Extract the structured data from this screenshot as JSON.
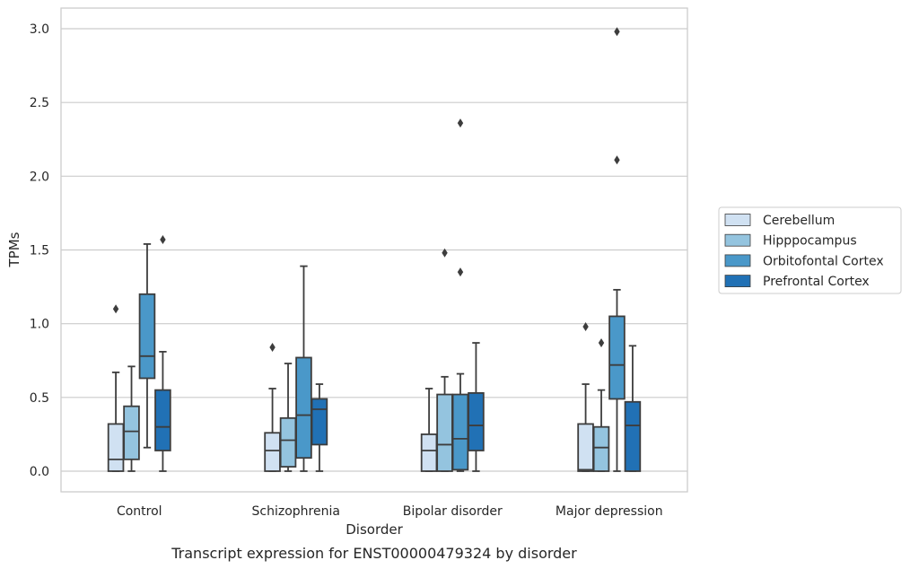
{
  "chart_data": {
    "type": "box",
    "caption": "Transcript expression for ENST00000479324 by disorder",
    "xlabel": "Disorder",
    "ylabel": "TPMs",
    "ylim": [
      -0.14,
      3.14
    ],
    "yticks": [
      0.0,
      0.5,
      1.0,
      1.5,
      2.0,
      2.5,
      3.0
    ],
    "ytick_labels": [
      "0.0",
      "0.5",
      "1.0",
      "1.5",
      "2.0",
      "2.5",
      "3.0"
    ],
    "grid": "horizontal",
    "legend_position": "right",
    "categories": [
      "Control",
      "Schizophrenia",
      "Bipolar disorder",
      "Major depression"
    ],
    "series": [
      {
        "name": "Cerebellum",
        "color": "#d0e1f2",
        "boxes": [
          {
            "whisker_low": 0.0,
            "q1": 0.0,
            "median": 0.08,
            "q3": 0.32,
            "whisker_high": 0.67,
            "outliers": [
              1.1
            ]
          },
          {
            "whisker_low": 0.0,
            "q1": 0.0,
            "median": 0.14,
            "q3": 0.26,
            "whisker_high": 0.56,
            "outliers": [
              0.84
            ]
          },
          {
            "whisker_low": 0.0,
            "q1": 0.0,
            "median": 0.14,
            "q3": 0.25,
            "whisker_high": 0.56,
            "outliers": []
          },
          {
            "whisker_low": 0.0,
            "q1": 0.0,
            "median": 0.01,
            "q3": 0.32,
            "whisker_high": 0.59,
            "outliers": [
              0.98
            ]
          }
        ]
      },
      {
        "name": "Hipppocampus",
        "color": "#94c4df",
        "boxes": [
          {
            "whisker_low": 0.0,
            "q1": 0.08,
            "median": 0.27,
            "q3": 0.44,
            "whisker_high": 0.71,
            "outliers": []
          },
          {
            "whisker_low": 0.0,
            "q1": 0.03,
            "median": 0.21,
            "q3": 0.36,
            "whisker_high": 0.73,
            "outliers": []
          },
          {
            "whisker_low": 0.0,
            "q1": 0.0,
            "median": 0.18,
            "q3": 0.52,
            "whisker_high": 0.64,
            "outliers": [
              1.48
            ]
          },
          {
            "whisker_low": 0.0,
            "q1": 0.0,
            "median": 0.16,
            "q3": 0.3,
            "whisker_high": 0.55,
            "outliers": [
              0.87
            ]
          }
        ]
      },
      {
        "name": "Orbitofontal Cortex",
        "color": "#4a98c9",
        "boxes": [
          {
            "whisker_low": 0.16,
            "q1": 0.63,
            "median": 0.78,
            "q3": 1.2,
            "whisker_high": 1.54,
            "outliers": []
          },
          {
            "whisker_low": 0.0,
            "q1": 0.09,
            "median": 0.38,
            "q3": 0.77,
            "whisker_high": 1.39,
            "outliers": []
          },
          {
            "whisker_low": 0.0,
            "q1": 0.01,
            "median": 0.22,
            "q3": 0.52,
            "whisker_high": 0.66,
            "outliers": [
              1.35,
              2.36
            ]
          },
          {
            "whisker_low": 0.0,
            "q1": 0.49,
            "median": 0.72,
            "q3": 1.05,
            "whisker_high": 1.23,
            "outliers": [
              2.11,
              2.98
            ]
          }
        ]
      },
      {
        "name": "Prefrontal Cortex",
        "color": "#2171b5",
        "boxes": [
          {
            "whisker_low": 0.0,
            "q1": 0.14,
            "median": 0.3,
            "q3": 0.55,
            "whisker_high": 0.81,
            "outliers": [
              1.57
            ]
          },
          {
            "whisker_low": 0.0,
            "q1": 0.18,
            "median": 0.42,
            "q3": 0.49,
            "whisker_high": 0.59,
            "outliers": []
          },
          {
            "whisker_low": 0.0,
            "q1": 0.14,
            "median": 0.31,
            "q3": 0.53,
            "whisker_high": 0.87,
            "outliers": []
          },
          {
            "whisker_low": 0.0,
            "q1": 0.0,
            "median": 0.31,
            "q3": 0.47,
            "whisker_high": 0.85,
            "outliers": []
          }
        ]
      }
    ]
  }
}
